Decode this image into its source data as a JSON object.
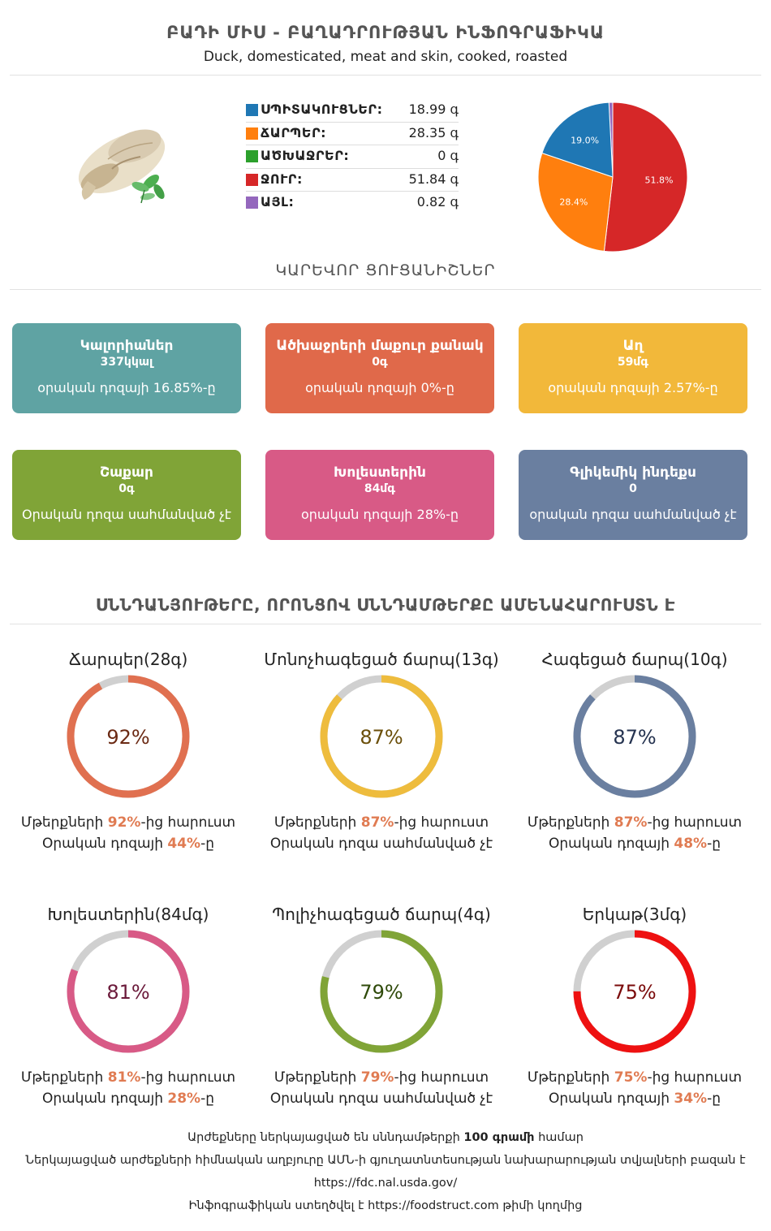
{
  "header": {
    "title": "ԲԱԴԻ ՄԻՍ - ԲԱՂԱԴՐՈՒԹՅԱՆ ԻՆՖՈԳՐԱՖԻԿԱ",
    "subtitle": "Duck, domesticated, meat and skin, cooked, roasted"
  },
  "macros": [
    {
      "name": "ՍՊԻՏԱԿՈՒՑՆԵՐ:",
      "value": "18.99 գ",
      "color": "#1f77b4"
    },
    {
      "name": "ՃԱՐՊԵՐ:",
      "value": "28.35 գ",
      "color": "#ff7f0e"
    },
    {
      "name": "ԱԾԽԱՋՐԵՐ:",
      "value": "0 գ",
      "color": "#2ca02c"
    },
    {
      "name": "ՋՈՒՐ:",
      "value": "51.84 գ",
      "color": "#d62728"
    },
    {
      "name": "ԱՅԼ:",
      "value": "0.82 գ",
      "color": "#9467bd"
    }
  ],
  "chart_data": [
    {
      "type": "pie",
      "categories": [
        "ՍՊԻՏԱԿՈՒՑՆԵՐ",
        "ՃԱՐՊԵՐ",
        "ԱԾԽԱՋՐԵՐ",
        "ՋՈՒՐ",
        "ԱՅԼ"
      ],
      "values": [
        18.99,
        28.35,
        0,
        51.84,
        0.82
      ],
      "slice_labels": [
        "19.0%",
        "28.4%",
        "",
        "51.8%",
        ""
      ],
      "colors": [
        "#1f77b4",
        "#ff7f0e",
        "#2ca02c",
        "#d62728",
        "#9467bd"
      ]
    },
    {
      "type": "pie",
      "title": "Ճարպեր(28գ)",
      "values": [
        92,
        8
      ],
      "center_label": "92%",
      "colors": [
        "#e07050",
        "#d0d0d0"
      ]
    },
    {
      "type": "pie",
      "title": "Մոնոչհագեցած ճարպ(13գ)",
      "values": [
        87,
        13
      ],
      "center_label": "87%",
      "colors": [
        "#eebc3d",
        "#d0d0d0"
      ]
    },
    {
      "type": "pie",
      "title": "Հագեցած ճարպ(10գ)",
      "values": [
        87,
        13
      ],
      "center_label": "87%",
      "colors": [
        "#6a7fa0",
        "#d0d0d0"
      ]
    },
    {
      "type": "pie",
      "title": "Խոլեստերին(84մգ)",
      "values": [
        81,
        19
      ],
      "center_label": "81%",
      "colors": [
        "#d85a86",
        "#d0d0d0"
      ]
    },
    {
      "type": "pie",
      "title": "Պոլիչհագեցած ճարպ(4գ)",
      "values": [
        79,
        21
      ],
      "center_label": "79%",
      "colors": [
        "#80a437",
        "#d0d0d0"
      ]
    },
    {
      "type": "pie",
      "title": "Երկաթ(3մգ)",
      "values": [
        75,
        25
      ],
      "center_label": "75%",
      "colors": [
        "#ee1111",
        "#d0d0d0"
      ]
    }
  ],
  "key_indicators": {
    "title": "ԿԱՐԵՎՈՐ ՑՈՒՑԱՆԻՇՆԵՐ",
    "cards": [
      {
        "title": "Կալորիաներ",
        "value": "337կկալ",
        "note": "օրական դոզայի 16.85%-ը",
        "color": "#5fa3a3"
      },
      {
        "title": "Ածխաջրերի մաքուր քանակ",
        "value": "0գ",
        "note": "օրական դոզայի 0%-ը",
        "color": "#e0694a"
      },
      {
        "title": "Աղ",
        "value": "59մգ",
        "note": "օրական դոզայի 2.57%-ը",
        "color": "#f2b83a"
      },
      {
        "title": "Շաքար",
        "value": "0գ",
        "note": "Օրական դոզա սահմանված չէ",
        "color": "#80a437"
      },
      {
        "title": "Խոլեստերին",
        "value": "84մգ",
        "note": "օրական դոզայի 28%-ը",
        "color": "#d85a86"
      },
      {
        "title": "Գլիկեմիկ ինդեքս",
        "value": "0",
        "note": "օրական դոզա սահմանված չէ",
        "color": "#6a7fa0"
      }
    ]
  },
  "rich_nutrients": {
    "title": "ՍՆՆԴԱՆՅՈՒԹԵՐԸ, ՈՐՈՆՑՈՎ ՍՆՆԴԱՄԹԵՐՔԸ ԱՄԵՆԱՀԱՐՈՒՍՏՆ Է",
    "gauges": [
      {
        "line1_pre": "Մթերքների ",
        "line1_hl": "92%",
        "line1_post": "-ից հարուստ",
        "line2_pre": "Օրական դոզայի ",
        "line2_hl": "44%",
        "line2_post": "-ը",
        "color": "#e07050",
        "text_color": "#6b2a14"
      },
      {
        "line1_pre": "Մթերքների ",
        "line1_hl": "87%",
        "line1_post": "-ից հարուստ",
        "line2_pre": "Օրական դոզա սահմանված չէ",
        "line2_hl": "",
        "line2_post": "",
        "color": "#eebc3d",
        "text_color": "#6b4f0a"
      },
      {
        "line1_pre": "Մթերքների ",
        "line1_hl": "87%",
        "line1_post": "-ից հարուստ",
        "line2_pre": "Օրական դոզայի ",
        "line2_hl": "48%",
        "line2_post": "-ը",
        "color": "#6a7fa0",
        "text_color": "#253350"
      },
      {
        "line1_pre": "Մթերքների ",
        "line1_hl": "81%",
        "line1_post": "-ից հարուստ",
        "line2_pre": "Օրական դոզայի ",
        "line2_hl": "28%",
        "line2_post": "-ը",
        "color": "#d85a86",
        "text_color": "#6b1a3a"
      },
      {
        "line1_pre": "Մթերքների ",
        "line1_hl": "79%",
        "line1_post": "-ից հարուստ",
        "line2_pre": "Օրական դոզա սահմանված չէ",
        "line2_hl": "",
        "line2_post": "",
        "color": "#80a437",
        "text_color": "#2f4a0a"
      },
      {
        "line1_pre": "Մթերքների ",
        "line1_hl": "75%",
        "line1_post": "-ից հարուստ",
        "line2_pre": "Օրական դոզայի ",
        "line2_hl": "34%",
        "line2_post": "-ը",
        "color": "#ee1111",
        "text_color": "#7a0a0a"
      }
    ]
  },
  "footer": {
    "line1_pre": "Արժեքները ներկայացված են սննդամթերքի ",
    "line1_bold": "100 գրամի",
    "line1_post": " համար",
    "line2": "Ներկայացված արժեքների հիմնական աղբյուրը ԱՄՆ-ի գյուղատնտեսության նախարարության տվյալների բազան է",
    "line3": "https://fdc.nal.usda.gov/",
    "line4": "Ինֆոգրաֆիկան ստեղծվել է https://foodstruct.com թիմի կողմից"
  }
}
